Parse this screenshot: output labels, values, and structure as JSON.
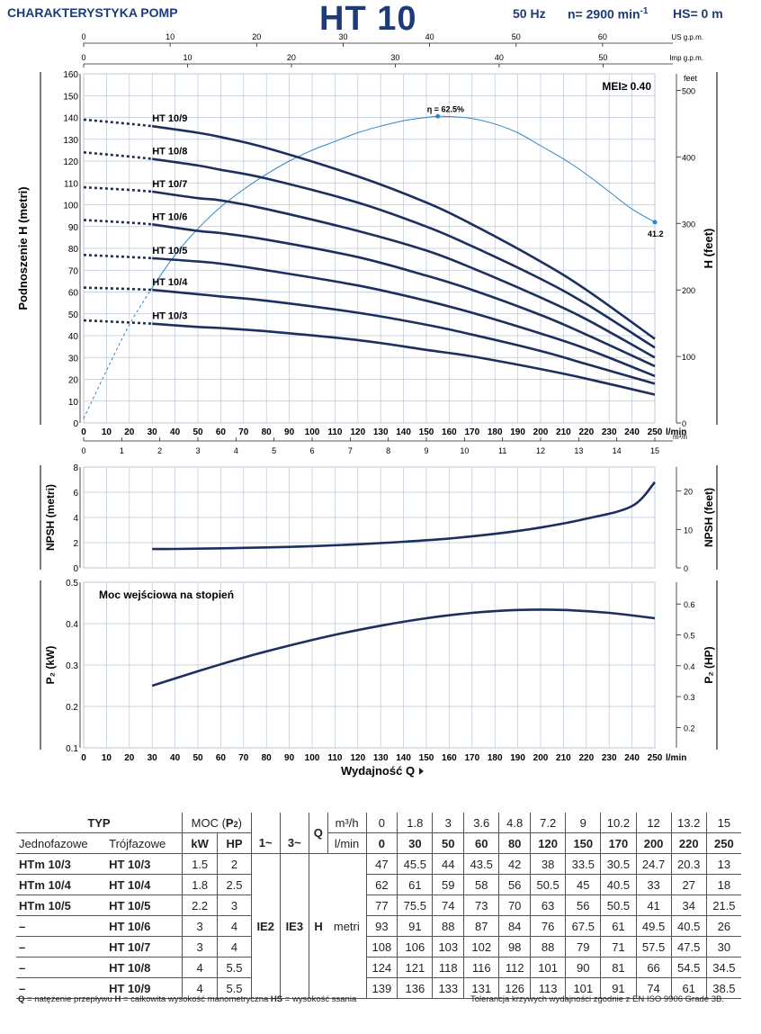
{
  "header": {
    "left_title": "CHARAKTERYSTYKA POMP",
    "model": "HT 10",
    "frequency": "50 Hz",
    "speed_prefix": "n= 2900 min",
    "speed_suffix": "-1",
    "hs": "HS= 0 m"
  },
  "chart_data": [
    {
      "type": "line",
      "title": "",
      "ylabel": "Podnoszenie H (metri)",
      "ylabel2": "H (feet)",
      "xlabel": "l/min",
      "xlim": [
        0,
        250
      ],
      "ylim": [
        0,
        160
      ],
      "y_ticks": [
        0,
        10,
        20,
        30,
        40,
        50,
        60,
        70,
        80,
        90,
        100,
        110,
        120,
        130,
        140,
        150,
        160
      ],
      "y2_unit": "feet",
      "y2_ticks": [
        0,
        100,
        200,
        300,
        400,
        500
      ],
      "x_ticks": [
        0,
        10,
        20,
        30,
        40,
        50,
        60,
        70,
        80,
        90,
        100,
        110,
        120,
        130,
        140,
        150,
        160,
        170,
        180,
        190,
        200,
        210,
        220,
        230,
        240,
        250
      ],
      "x_unit_bottom": "l/min",
      "x2_unit": "m³/h",
      "x2_ticks": [
        0,
        1,
        2,
        3,
        4,
        5,
        6,
        7,
        8,
        9,
        10,
        11,
        12,
        13,
        14,
        15
      ],
      "us_unit": "US g.p.m.",
      "us_ticks": [
        0,
        10,
        20,
        30,
        40,
        50,
        60
      ],
      "imp_unit": "Imp g.p.m.",
      "imp_ticks": [
        0,
        10,
        20,
        30,
        40,
        50
      ],
      "mei": "MEI≥ 0.40",
      "efficiency_label": "η = 62.5%",
      "efficiency_end_label": "41.2",
      "efficiency_curve": {
        "x": [
          0,
          10,
          20,
          30,
          40,
          50,
          60,
          70,
          80,
          90,
          100,
          110,
          120,
          130,
          140,
          150,
          155,
          160,
          170,
          180,
          190,
          200,
          210,
          220,
          230,
          240,
          250
        ],
        "y": [
          2,
          24,
          45,
          62,
          77,
          89,
          99,
          107,
          114,
          120,
          125,
          129,
          133,
          136,
          138.5,
          140,
          140.5,
          140.4,
          139.5,
          137,
          133,
          127,
          121,
          114,
          106,
          98,
          92
        ]
      },
      "dotted_start_x": 30,
      "series": [
        {
          "name": "HT 10/9",
          "x": [
            0,
            30,
            50,
            60,
            80,
            120,
            150,
            170,
            200,
            220,
            250
          ],
          "y": [
            139,
            136,
            133,
            131,
            126,
            113,
            101,
            91,
            74,
            61,
            38.5
          ]
        },
        {
          "name": "HT 10/8",
          "x": [
            0,
            30,
            50,
            60,
            80,
            120,
            150,
            170,
            200,
            220,
            250
          ],
          "y": [
            124,
            121,
            118,
            116,
            112,
            101,
            90,
            81,
            66,
            54.5,
            34.5
          ]
        },
        {
          "name": "HT 10/7",
          "x": [
            0,
            30,
            50,
            60,
            80,
            120,
            150,
            170,
            200,
            220,
            250
          ],
          "y": [
            108,
            106,
            103,
            102,
            98,
            88,
            79,
            71,
            57.5,
            47.5,
            30
          ]
        },
        {
          "name": "HT 10/6",
          "x": [
            0,
            30,
            50,
            60,
            80,
            120,
            150,
            170,
            200,
            220,
            250
          ],
          "y": [
            93,
            91,
            88,
            87,
            84,
            76,
            67.5,
            61,
            49.5,
            40.5,
            26
          ]
        },
        {
          "name": "HT 10/5",
          "x": [
            0,
            30,
            50,
            60,
            80,
            120,
            150,
            170,
            200,
            220,
            250
          ],
          "y": [
            77,
            75.5,
            74,
            73,
            70,
            63,
            56,
            50.5,
            41,
            34,
            21.5
          ]
        },
        {
          "name": "HT 10/4",
          "x": [
            0,
            30,
            50,
            60,
            80,
            120,
            150,
            170,
            200,
            220,
            250
          ],
          "y": [
            62,
            61,
            59,
            58,
            56,
            50.5,
            45,
            40.5,
            33,
            27,
            18
          ]
        },
        {
          "name": "HT 10/3",
          "x": [
            0,
            30,
            50,
            60,
            80,
            120,
            150,
            170,
            200,
            220,
            250
          ],
          "y": [
            47,
            45.5,
            44,
            43.5,
            42,
            38,
            33.5,
            30.5,
            24.7,
            20.3,
            13
          ]
        }
      ]
    },
    {
      "type": "line",
      "ylabel": "NPSH (metri)",
      "ylabel2": "NPSH (feet)",
      "ylim": [
        0,
        8
      ],
      "y_ticks": [
        0,
        2,
        4,
        6,
        8
      ],
      "y2_ticks": [
        0,
        10,
        20
      ],
      "x": [
        30,
        40,
        60,
        80,
        100,
        120,
        140,
        160,
        180,
        200,
        220,
        240,
        250
      ],
      "y": [
        1.5,
        1.5,
        1.55,
        1.62,
        1.72,
        1.87,
        2.07,
        2.33,
        2.7,
        3.2,
        3.9,
        4.9,
        6.8
      ]
    },
    {
      "type": "line",
      "title": "Moc wejściowa na stopień",
      "ylabel": "P₂ (kW)",
      "ylabel2": "P₂ (HP)",
      "xlabel": "Wydajność Q",
      "x_unit": "l/min",
      "ylim": [
        0.1,
        0.5
      ],
      "y_ticks": [
        0.1,
        0.2,
        0.3,
        0.4,
        0.5
      ],
      "y2_ticks": [
        0.2,
        0.3,
        0.4,
        0.5,
        0.6
      ],
      "x": [
        30,
        50,
        70,
        90,
        110,
        130,
        150,
        170,
        190,
        210,
        230,
        250
      ],
      "y": [
        0.25,
        0.285,
        0.318,
        0.347,
        0.373,
        0.395,
        0.413,
        0.426,
        0.433,
        0.433,
        0.426,
        0.413
      ]
    }
  ],
  "table": {
    "h_typ": "TYP",
    "h_moc": "MOC (",
    "h_p2": "P",
    "h_p2_sub": "2",
    "h_moc_close": ")",
    "h_jedno": "Jednofazowe",
    "h_troj": "Trójfazowe",
    "h_kw": "kW",
    "h_hp": "HP",
    "h_1": "1~",
    "h_3": "3~",
    "h_q": "Q",
    "h_m3h": "m³/h",
    "h_lmin": "l/min",
    "m3h": [
      "0",
      "1.8",
      "3",
      "3.6",
      "4.8",
      "7.2",
      "9",
      "10.2",
      "12",
      "13.2",
      "15"
    ],
    "lmin": [
      "0",
      "30",
      "50",
      "60",
      "80",
      "120",
      "150",
      "170",
      "200",
      "220",
      "250"
    ],
    "ie2": "IE2",
    "ie3": "IE3",
    "h_label": "H",
    "metri": "metri",
    "rows": [
      {
        "jedno": "HTm 10/3",
        "troj": "HT 10/3",
        "kw": "1.5",
        "hp": "2",
        "h": [
          "47",
          "45.5",
          "44",
          "43.5",
          "42",
          "38",
          "33.5",
          "30.5",
          "24.7",
          "20.3",
          "13"
        ]
      },
      {
        "jedno": "HTm 10/4",
        "troj": "HT 10/4",
        "kw": "1.8",
        "hp": "2.5",
        "h": [
          "62",
          "61",
          "59",
          "58",
          "56",
          "50.5",
          "45",
          "40.5",
          "33",
          "27",
          "18"
        ]
      },
      {
        "jedno": "HTm 10/5",
        "troj": "HT 10/5",
        "kw": "2.2",
        "hp": "3",
        "h": [
          "77",
          "75.5",
          "74",
          "73",
          "70",
          "63",
          "56",
          "50.5",
          "41",
          "34",
          "21.5"
        ]
      },
      {
        "jedno": "–",
        "troj": "HT 10/6",
        "kw": "3",
        "hp": "4",
        "h": [
          "93",
          "91",
          "88",
          "87",
          "84",
          "76",
          "67.5",
          "61",
          "49.5",
          "40.5",
          "26"
        ]
      },
      {
        "jedno": "–",
        "troj": "HT 10/7",
        "kw": "3",
        "hp": "4",
        "h": [
          "108",
          "106",
          "103",
          "102",
          "98",
          "88",
          "79",
          "71",
          "57.5",
          "47.5",
          "30"
        ]
      },
      {
        "jedno": "–",
        "troj": "HT 10/8",
        "kw": "4",
        "hp": "5.5",
        "h": [
          "124",
          "121",
          "118",
          "116",
          "112",
          "101",
          "90",
          "81",
          "66",
          "54.5",
          "34.5"
        ]
      },
      {
        "jedno": "–",
        "troj": "HT 10/9",
        "kw": "4",
        "hp": "5.5",
        "h": [
          "139",
          "136",
          "133",
          "131",
          "126",
          "113",
          "101",
          "91",
          "74",
          "61",
          "38.5"
        ]
      }
    ]
  },
  "footer": {
    "q_key": "Q",
    "q_desc": " = natężenie przepływu ",
    "h_key": "H",
    "h_desc": " = całkowita wysokość manometryczna   ",
    "hs_key": "HS",
    "hs_desc": " = wysokość ssania",
    "tolerance": "Tolerancja krzywych wydajności zgodnie z EN ISO 9906 Grade 3B."
  },
  "colors": {
    "curve": "#1d2f5e",
    "efficiency": "#2f86c4",
    "grid": "#b9c7d9",
    "title": "#1d3b7a"
  }
}
